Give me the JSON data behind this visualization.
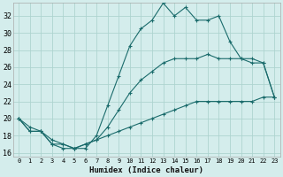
{
  "xlabel": "Humidex (Indice chaleur)",
  "bg_color": "#d4edec",
  "grid_color": "#aed4d0",
  "line_color": "#1a6b6b",
  "xlim": [
    -0.5,
    23.5
  ],
  "ylim": [
    15.5,
    33.5
  ],
  "xticks": [
    0,
    1,
    2,
    3,
    4,
    5,
    6,
    7,
    8,
    9,
    10,
    11,
    12,
    13,
    14,
    15,
    16,
    17,
    18,
    19,
    20,
    21,
    22,
    23
  ],
  "yticks": [
    16,
    18,
    20,
    22,
    24,
    26,
    28,
    30,
    32
  ],
  "line1_x": [
    0,
    1,
    2,
    3,
    4,
    5,
    6,
    7,
    8,
    9,
    10,
    11,
    12,
    13,
    14,
    15,
    16,
    17,
    18,
    19,
    20,
    21,
    22,
    23
  ],
  "line1_y": [
    20,
    19,
    18.5,
    17,
    17,
    16.5,
    16.5,
    18,
    21.5,
    25,
    28.5,
    30.5,
    31.5,
    33.5,
    32,
    33,
    31.5,
    31.5,
    32,
    29,
    27,
    26.5,
    26.5,
    22.5
  ],
  "line2_x": [
    0,
    1,
    2,
    3,
    4,
    5,
    6,
    7,
    8,
    9,
    10,
    11,
    12,
    13,
    14,
    15,
    16,
    17,
    18,
    19,
    20,
    21,
    22,
    23
  ],
  "line2_y": [
    20,
    18.5,
    18.5,
    17,
    16.5,
    16.5,
    17,
    17.5,
    19,
    21,
    23,
    24.5,
    25.5,
    26.5,
    27,
    27,
    27,
    27.5,
    27,
    27,
    27,
    27,
    26.5,
    22.5
  ],
  "line3_x": [
    0,
    1,
    2,
    3,
    4,
    5,
    6,
    7,
    8,
    9,
    10,
    11,
    12,
    13,
    14,
    15,
    16,
    17,
    18,
    19,
    20,
    21,
    22,
    23
  ],
  "line3_y": [
    20,
    18.5,
    18.5,
    17.5,
    17,
    16.5,
    17,
    17.5,
    18,
    18.5,
    19,
    19.5,
    20,
    20.5,
    21,
    21.5,
    22,
    22,
    22,
    22,
    22,
    22,
    22.5,
    22.5
  ]
}
